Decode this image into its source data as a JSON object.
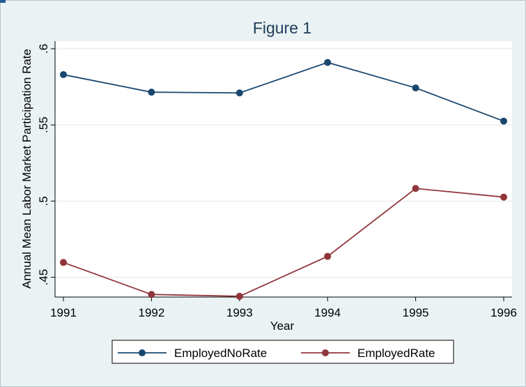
{
  "chart_data": {
    "type": "line",
    "title": "Figure 1",
    "xlabel": "Year",
    "ylabel": "Annual Mean Labor Market Participation Rate",
    "x": [
      1991,
      1992,
      1993,
      1994,
      1995,
      1996
    ],
    "x_ticks": [
      "1991",
      "1992",
      "1993",
      "1994",
      "1995",
      "1996"
    ],
    "y_ticks": [
      {
        "value": 0.45,
        "label": ".45"
      },
      {
        "value": 0.5,
        "label": ".5"
      },
      {
        "value": 0.55,
        "label": ".55"
      },
      {
        "value": 0.6,
        "label": ".6"
      }
    ],
    "ylim": [
      0.437,
      0.605
    ],
    "grid": true,
    "legend_position": "bottom",
    "series": [
      {
        "name": "EmployedNoRate",
        "color": "#1a476f",
        "values": [
          0.583,
          0.5715,
          0.571,
          0.591,
          0.5743,
          0.5525
        ]
      },
      {
        "name": "EmployedRate",
        "color": "#90353b",
        "values": [
          0.4597,
          0.4387,
          0.4375,
          0.4637,
          0.5083,
          0.5026
        ]
      }
    ]
  },
  "colors": {
    "background": "#eaf2f3",
    "plot_area": "#ffffff",
    "title": "#1e3b5a"
  }
}
